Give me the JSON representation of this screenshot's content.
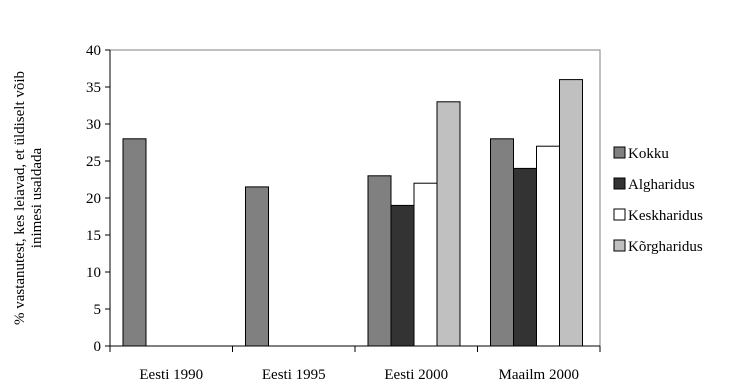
{
  "chart_data": {
    "type": "bar",
    "title": "",
    "xlabel": "",
    "ylabel_lines": [
      "% vastanutest, kes leiavad, et üldiselt võib",
      "inimesi usaldada"
    ],
    "ylim": [
      0,
      40
    ],
    "yticks": [
      "0",
      "5",
      "10",
      "15",
      "20",
      "25",
      "30",
      "35",
      "40"
    ],
    "grid": false,
    "legend_position": "right",
    "categories": [
      "Eesti 1990",
      "Eesti 1995",
      "Eesti 2000",
      "Maailm 2000"
    ],
    "series": [
      {
        "name": "Kokku",
        "color": "#808080",
        "values": [
          28,
          21.5,
          23,
          28
        ]
      },
      {
        "name": "Algharidus",
        "color": "#333333",
        "values": [
          null,
          null,
          19,
          24
        ]
      },
      {
        "name": "Keskharidus",
        "color": "#ffffff",
        "values": [
          null,
          null,
          22,
          27
        ]
      },
      {
        "name": "Kõrgharidus",
        "color": "#c0c0c0",
        "values": [
          null,
          null,
          33,
          36
        ]
      }
    ]
  }
}
